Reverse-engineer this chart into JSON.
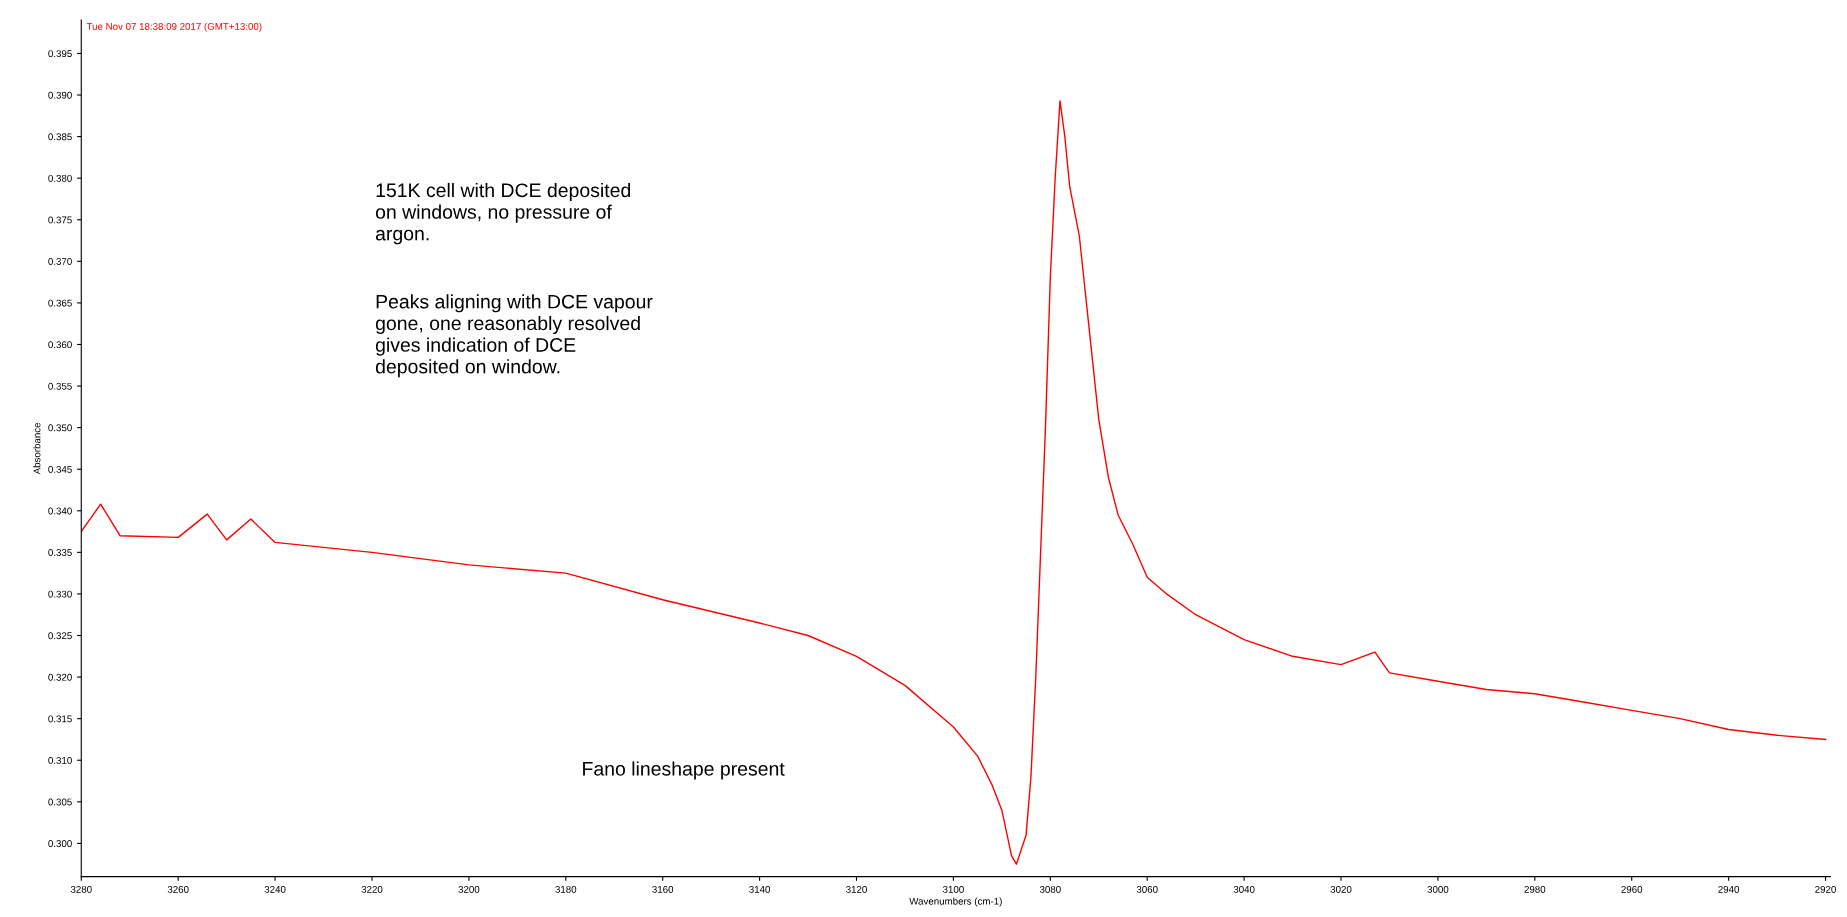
{
  "chart_data": {
    "type": "line",
    "xlabel": "Wavenumbers (cm-1)",
    "ylabel": "Absorbance",
    "annotations": [
      "Tue Nov 07 18:38:09 2017 (GMT+13:00)",
      "151K cell with DCE deposited\non windows, no pressure of\nargon.",
      "Peaks aligning with DCE vapour\ngone, one reasonably resolved\ngives indication of DCE\ndeposited on window.",
      "Fano lineshape present"
    ],
    "xlim": [
      3280,
      2919
    ],
    "xticks": [
      3280,
      3260,
      3240,
      3220,
      3200,
      3180,
      3160,
      3140,
      3120,
      3100,
      3080,
      3060,
      3040,
      3020,
      3000,
      2980,
      2960,
      2940,
      2920
    ],
    "ylim": [
      0.296,
      0.399
    ],
    "yticks": [
      {
        "value": 0.3,
        "label": "0.300"
      },
      0.305,
      {
        "value": 0.31,
        "label": "0.310"
      },
      0.315,
      {
        "value": 0.32,
        "label": "0.320"
      },
      0.325,
      {
        "value": 0.33,
        "label": "0.330"
      },
      0.335,
      {
        "value": 0.34,
        "label": "0.340"
      },
      0.345,
      {
        "value": 0.35,
        "label": "0.350"
      },
      0.355,
      {
        "value": 0.36,
        "label": "0.360"
      },
      0.365,
      {
        "value": 0.37,
        "label": "0.370"
      },
      0.375,
      {
        "value": 0.38,
        "label": "0.380"
      },
      0.385,
      {
        "value": 0.39,
        "label": "0.390"
      },
      0.395
    ],
    "marker": "none",
    "line_style": "solid",
    "series": [
      {
        "color": "#ff0000",
        "x": [
          3280,
          3276,
          3272,
          3260,
          3254,
          3250,
          3245,
          3240,
          3220,
          3200,
          3180,
          3160,
          3140,
          3130,
          3120,
          3110,
          3100,
          3095,
          3092,
          3090,
          3088,
          3087,
          3085,
          3084,
          3083,
          3082,
          3081,
          3080,
          3079,
          3078,
          3077,
          3076,
          3074,
          3072,
          3070,
          3068,
          3066,
          3063,
          3060,
          3056,
          3050,
          3040,
          3030,
          3020,
          3013,
          3010,
          3000,
          2990,
          2980,
          2970,
          2960,
          2950,
          2940,
          2930,
          2920
        ],
        "values": [
          0.3375,
          0.3408,
          0.337,
          0.3368,
          0.3396,
          0.3365,
          0.339,
          0.3362,
          0.335,
          0.3335,
          0.3325,
          0.3293,
          0.3265,
          0.325,
          0.3225,
          0.319,
          0.314,
          0.3105,
          0.307,
          0.304,
          0.2985,
          0.2975,
          0.301,
          0.308,
          0.32,
          0.335,
          0.35,
          0.368,
          0.38,
          0.3893,
          0.385,
          0.379,
          0.373,
          0.362,
          0.351,
          0.344,
          0.3395,
          0.336,
          0.332,
          0.33,
          0.3275,
          0.3245,
          0.3225,
          0.3215,
          0.323,
          0.3205,
          0.3195,
          0.3185,
          0.318,
          0.317,
          0.316,
          0.315,
          0.3137,
          0.313,
          0.3125
        ]
      }
    ]
  }
}
